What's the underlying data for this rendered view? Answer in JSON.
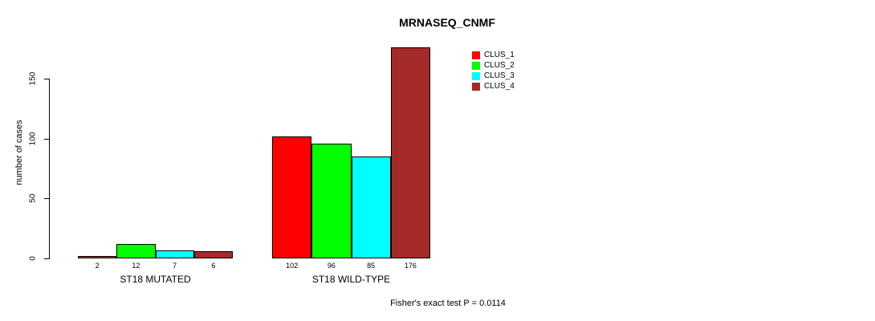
{
  "chart_data": {
    "type": "bar",
    "title": "MRNASEQ_CNMF",
    "ylabel": "number of cases",
    "xlabel": "",
    "categories": [
      "ST18 MUTATED",
      "ST18 WILD-TYPE"
    ],
    "series": [
      {
        "name": "CLUS_1",
        "color": "#FF0000",
        "values": [
          2,
          102
        ]
      },
      {
        "name": "CLUS_2",
        "color": "#00FF00",
        "values": [
          12,
          96
        ]
      },
      {
        "name": "CLUS_3",
        "color": "#00FFFF",
        "values": [
          7,
          85
        ]
      },
      {
        "name": "CLUS_4",
        "color": "#A52A2A",
        "values": [
          6,
          176
        ]
      }
    ],
    "bar_labels": [
      [
        "2",
        "12",
        "7",
        "6"
      ],
      [
        "102",
        "96",
        "85",
        "176"
      ]
    ],
    "yticks": [
      0,
      50,
      100,
      150
    ],
    "ylim": [
      0,
      176
    ],
    "grid": false,
    "legend_position": "top-right",
    "legend_labels": [
      "CLUS_1",
      "CLUS_2",
      "CLUS_3",
      "CLUS_4"
    ],
    "bar_edge_color": "#000000",
    "background_color": "#FFFFFF",
    "annotation": "Fisher's exact test P = 0.0114"
  }
}
